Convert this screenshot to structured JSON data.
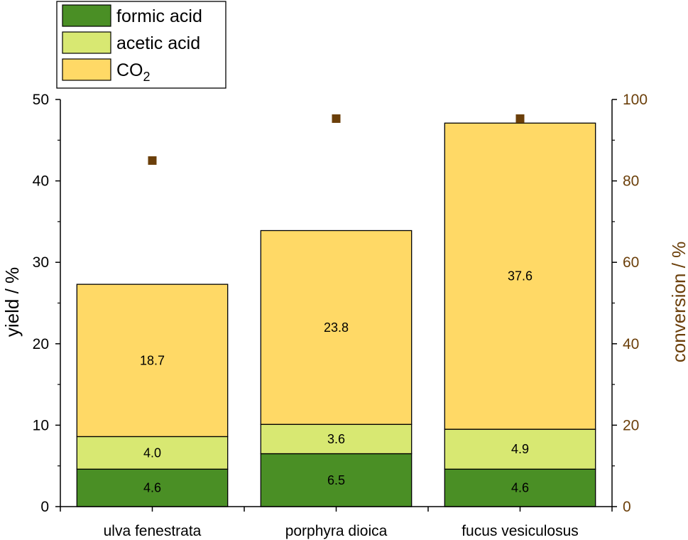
{
  "chart_data": {
    "type": "bar",
    "stacked": true,
    "categories": [
      "ulva fenestrata",
      "porphyra dioica",
      "fucus vesiculosus"
    ],
    "series": [
      {
        "name": "formic acid",
        "color": "#4a8f25",
        "values": [
          4.6,
          6.5,
          4.6
        ]
      },
      {
        "name": "acetic acid",
        "color": "#d8e872",
        "values": [
          4.0,
          3.6,
          4.9
        ]
      },
      {
        "name": "CO2",
        "color": "#ffd966",
        "values": [
          18.7,
          23.8,
          37.6
        ]
      }
    ],
    "data_labels": [
      [
        "4.6",
        "6.5",
        "4.6"
      ],
      [
        "4.0",
        "3.6",
        "4.9"
      ],
      [
        "18.7",
        "23.8",
        "37.6"
      ]
    ],
    "conversion": {
      "color": "#6b3f0a",
      "values": [
        85,
        95.3,
        95.3
      ]
    },
    "ylabel": "yield / %",
    "y2label": "conversion / %",
    "ylim": [
      0,
      50
    ],
    "y2lim": [
      0,
      100
    ],
    "yticks": [
      "0",
      "10",
      "20",
      "30",
      "40",
      "50"
    ],
    "y2ticks": [
      "0",
      "20",
      "40",
      "60",
      "80",
      "100"
    ],
    "legend": {
      "position": "top-left",
      "entries": [
        {
          "label": "formic acid",
          "color": "#4a8f25"
        },
        {
          "label": "acetic acid",
          "color": "#d8e872"
        },
        {
          "label": "CO",
          "sub": "2",
          "color": "#ffd966"
        }
      ]
    },
    "grid": false
  }
}
